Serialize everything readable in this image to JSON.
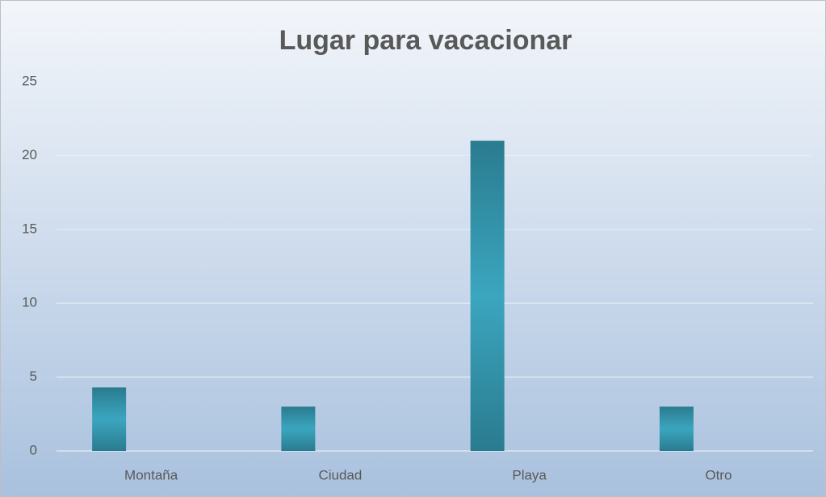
{
  "chart_data": {
    "type": "bar",
    "title": "Lugar para vacacionar",
    "categories": [
      "Montaña",
      "Ciudad",
      "Playa",
      "Otro"
    ],
    "values": [
      4.3,
      3,
      21,
      3
    ],
    "color": "#2f8fa6",
    "ylim": [
      0,
      25
    ],
    "yticks": [
      0,
      5,
      10,
      15,
      20,
      25
    ],
    "grid": true
  }
}
